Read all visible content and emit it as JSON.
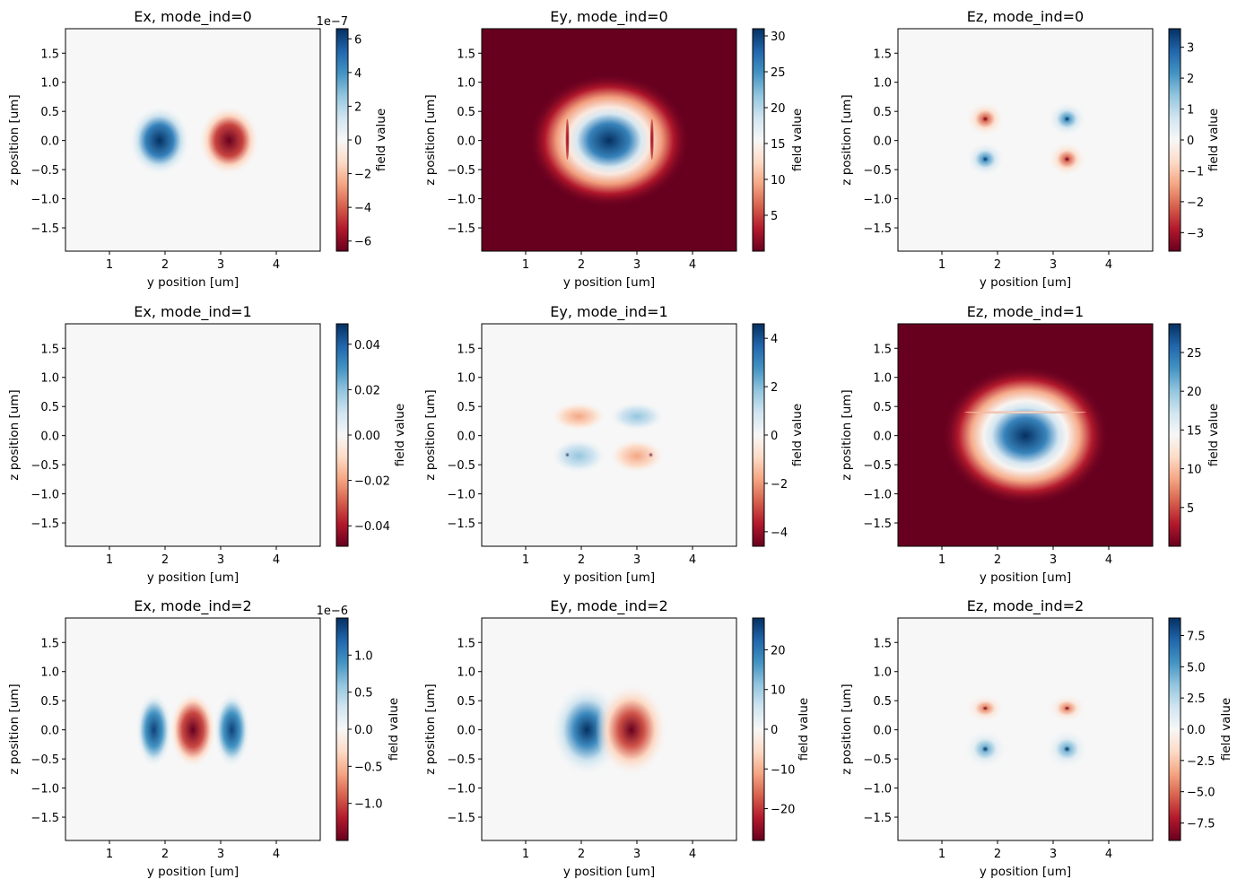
{
  "colormap": [
    "#67001f",
    "#b2182b",
    "#d6604d",
    "#f4a582",
    "#fddbc7",
    "#f7f7f7",
    "#d1e5f0",
    "#92c5de",
    "#4393c3",
    "#2166ac",
    "#053061"
  ],
  "chart_data": [
    {
      "type": "heatmap",
      "title": "Ex, mode_ind=0",
      "xlabel": "y position [um]",
      "ylabel": "z position [um]",
      "colorbar_label": "field value",
      "colorbar_offset": "1e−7",
      "xlim": [
        0.21,
        4.79
      ],
      "ylim": [
        -1.9,
        1.92
      ],
      "xticks": [
        "1",
        "2",
        "3",
        "4"
      ],
      "yticks": [
        "−1.5",
        "−1.0",
        "−0.5",
        "0.0",
        "0.5",
        "1.0",
        "1.5"
      ],
      "clim": [
        -6.6,
        6.6
      ],
      "cticks": [
        {
          "v": 6,
          "l": "6"
        },
        {
          "v": 4,
          "l": "4"
        },
        {
          "v": 2,
          "l": "2"
        },
        {
          "v": 0,
          "l": "0"
        },
        {
          "v": -2,
          "l": "−2"
        },
        {
          "v": -4,
          "l": "−4"
        },
        {
          "v": -6,
          "l": "−6"
        }
      ],
      "background": 0,
      "blobs": [
        {
          "y": 1.9,
          "z": 0.0,
          "ry": 0.55,
          "rz": 0.6,
          "profile": [
            [
              0,
              6.6
            ],
            [
              0.45,
              4.5
            ],
            [
              0.7,
              1.5
            ],
            [
              1,
              0
            ]
          ]
        },
        {
          "y": 3.15,
          "z": 0.0,
          "ry": 0.55,
          "rz": 0.6,
          "profile": [
            [
              0,
              -6.6
            ],
            [
              0.45,
              -4.5
            ],
            [
              0.7,
              -1.5
            ],
            [
              1,
              0
            ]
          ]
        }
      ]
    },
    {
      "type": "heatmap",
      "title": "Ey, mode_ind=0",
      "xlabel": "y position [um]",
      "ylabel": "z position [um]",
      "colorbar_label": "field value",
      "xlim": [
        0.21,
        4.79
      ],
      "ylim": [
        -1.9,
        1.92
      ],
      "xticks": [
        "1",
        "2",
        "3",
        "4"
      ],
      "yticks": [
        "−1.5",
        "−1.0",
        "−0.5",
        "0.0",
        "0.5",
        "1.0",
        "1.5"
      ],
      "clim": [
        0,
        31
      ],
      "cticks": [
        {
          "v": 30,
          "l": "30"
        },
        {
          "v": 25,
          "l": "25"
        },
        {
          "v": 20,
          "l": "20"
        },
        {
          "v": 15,
          "l": "15"
        },
        {
          "v": 10,
          "l": "10"
        },
        {
          "v": 5,
          "l": "5"
        }
      ],
      "background": 0,
      "blobs": [
        {
          "y": 2.5,
          "z": 0.0,
          "ry": 1.45,
          "rz": 1.15,
          "profile": [
            [
              0,
              31
            ],
            [
              0.25,
              26
            ],
            [
              0.4,
              18
            ],
            [
              0.5,
              14
            ],
            [
              0.65,
              9
            ],
            [
              0.8,
              3
            ],
            [
              1,
              0
            ]
          ]
        },
        {
          "y": 1.75,
          "z": 0.02,
          "ry": 0.03,
          "rz": 0.35,
          "profile": [
            [
              0,
              2
            ],
            [
              1,
              6
            ]
          ]
        },
        {
          "y": 3.27,
          "z": 0.02,
          "ry": 0.03,
          "rz": 0.35,
          "profile": [
            [
              0,
              2
            ],
            [
              1,
              6
            ]
          ]
        }
      ]
    },
    {
      "type": "heatmap",
      "title": "Ez, mode_ind=0",
      "xlabel": "y position [um]",
      "ylabel": "z position [um]",
      "colorbar_label": "field value",
      "xlim": [
        0.21,
        4.79
      ],
      "ylim": [
        -1.9,
        1.92
      ],
      "xticks": [
        "1",
        "2",
        "3",
        "4"
      ],
      "yticks": [
        "−1.5",
        "−1.0",
        "−0.5",
        "0.0",
        "0.5",
        "1.0",
        "1.5"
      ],
      "clim": [
        -3.6,
        3.6
      ],
      "cticks": [
        {
          "v": 3,
          "l": "3"
        },
        {
          "v": 2,
          "l": "2"
        },
        {
          "v": 1,
          "l": "1"
        },
        {
          "v": 0,
          "l": "0"
        },
        {
          "v": -1,
          "l": "−1"
        },
        {
          "v": -2,
          "l": "−2"
        },
        {
          "v": -3,
          "l": "−3"
        }
      ],
      "background": 0,
      "blobs": [
        {
          "y": 1.78,
          "z": 0.37,
          "ry": 0.35,
          "rz": 0.3,
          "profile": [
            [
              0,
              -3.6
            ],
            [
              0.15,
              -2
            ],
            [
              0.5,
              -0.6
            ],
            [
              1,
              0
            ]
          ]
        },
        {
          "y": 3.25,
          "z": 0.37,
          "ry": 0.35,
          "rz": 0.3,
          "profile": [
            [
              0,
              3.6
            ],
            [
              0.15,
              2
            ],
            [
              0.5,
              0.6
            ],
            [
              1,
              0
            ]
          ]
        },
        {
          "y": 1.78,
          "z": -0.32,
          "ry": 0.35,
          "rz": 0.3,
          "profile": [
            [
              0,
              3.6
            ],
            [
              0.15,
              2
            ],
            [
              0.5,
              0.6
            ],
            [
              1,
              0
            ]
          ]
        },
        {
          "y": 3.25,
          "z": -0.32,
          "ry": 0.35,
          "rz": 0.3,
          "profile": [
            [
              0,
              -3.6
            ],
            [
              0.15,
              -2
            ],
            [
              0.5,
              -0.6
            ],
            [
              1,
              0
            ]
          ]
        }
      ]
    },
    {
      "type": "heatmap",
      "title": "Ex, mode_ind=1",
      "xlabel": "y position [um]",
      "ylabel": "z position [um]",
      "colorbar_label": "field value",
      "xlim": [
        0.21,
        4.79
      ],
      "ylim": [
        -1.9,
        1.92
      ],
      "xticks": [
        "1",
        "2",
        "3",
        "4"
      ],
      "yticks": [
        "−1.5",
        "−1.0",
        "−0.5",
        "0.0",
        "0.5",
        "1.0",
        "1.5"
      ],
      "clim": [
        -0.049,
        0.049
      ],
      "cticks": [
        {
          "v": 0.04,
          "l": "0.04"
        },
        {
          "v": 0.02,
          "l": "0.02"
        },
        {
          "v": 0,
          "l": "0.00"
        },
        {
          "v": -0.02,
          "l": "−0.02"
        },
        {
          "v": -0.04,
          "l": "−0.04"
        }
      ],
      "background": 0,
      "blobs": []
    },
    {
      "type": "heatmap",
      "title": "Ey, mode_ind=1",
      "xlabel": "y position [um]",
      "ylabel": "z position [um]",
      "colorbar_label": "field value",
      "xlim": [
        0.21,
        4.79
      ],
      "ylim": [
        -1.9,
        1.92
      ],
      "xticks": [
        "1",
        "2",
        "3",
        "4"
      ],
      "yticks": [
        "−1.5",
        "−1.0",
        "−0.5",
        "0.0",
        "0.5",
        "1.0",
        "1.5"
      ],
      "clim": [
        -4.6,
        4.6
      ],
      "cticks": [
        {
          "v": 4,
          "l": "4"
        },
        {
          "v": 2,
          "l": "2"
        },
        {
          "v": 0,
          "l": "0"
        },
        {
          "v": -2,
          "l": "−2"
        },
        {
          "v": -4,
          "l": "−4"
        }
      ],
      "background": 0,
      "blobs": [
        {
          "y": 1.95,
          "z": 0.33,
          "ry": 0.5,
          "rz": 0.25,
          "profile": [
            [
              0,
              -1.8
            ],
            [
              0.6,
              -0.8
            ],
            [
              1,
              0
            ]
          ]
        },
        {
          "y": 3.0,
          "z": 0.33,
          "ry": 0.5,
          "rz": 0.25,
          "profile": [
            [
              0,
              1.8
            ],
            [
              0.6,
              0.8
            ],
            [
              1,
              0
            ]
          ]
        },
        {
          "y": 1.95,
          "z": -0.35,
          "ry": 0.5,
          "rz": 0.3,
          "profile": [
            [
              0,
              1.8
            ],
            [
              0.6,
              0.8
            ],
            [
              1,
              0
            ]
          ]
        },
        {
          "y": 3.0,
          "z": -0.35,
          "ry": 0.5,
          "rz": 0.3,
          "profile": [
            [
              0,
              -1.8
            ],
            [
              0.6,
              -0.8
            ],
            [
              1,
              0
            ]
          ]
        },
        {
          "y": 1.75,
          "z": -0.33,
          "ry": 0.06,
          "rz": 0.06,
          "profile": [
            [
              0,
              4.6
            ],
            [
              1,
              0
            ]
          ]
        },
        {
          "y": 3.25,
          "z": -0.33,
          "ry": 0.06,
          "rz": 0.06,
          "profile": [
            [
              0,
              -4.6
            ],
            [
              1,
              0
            ]
          ]
        }
      ]
    },
    {
      "type": "heatmap",
      "title": "Ez, mode_ind=1",
      "xlabel": "y position [um]",
      "ylabel": "z position [um]",
      "colorbar_label": "field value",
      "xlim": [
        0.21,
        4.79
      ],
      "ylim": [
        -1.9,
        1.92
      ],
      "xticks": [
        "1",
        "2",
        "3",
        "4"
      ],
      "yticks": [
        "−1.5",
        "−1.0",
        "−0.5",
        "0.0",
        "0.5",
        "1.0",
        "1.5"
      ],
      "clim": [
        0,
        28.7
      ],
      "cticks": [
        {
          "v": 25,
          "l": "25"
        },
        {
          "v": 20,
          "l": "20"
        },
        {
          "v": 15,
          "l": "15"
        },
        {
          "v": 10,
          "l": "10"
        },
        {
          "v": 5,
          "l": "5"
        }
      ],
      "background": 0,
      "blobs": [
        {
          "y": 2.5,
          "z": 0.0,
          "ry": 1.5,
          "rz": 1.2,
          "profile": [
            [
              0,
              28.7
            ],
            [
              0.25,
              24
            ],
            [
              0.4,
              17
            ],
            [
              0.5,
              14
            ],
            [
              0.65,
              9
            ],
            [
              0.8,
              3
            ],
            [
              1,
              0
            ]
          ]
        },
        {
          "y": 2.5,
          "z": 0.4,
          "ry": 1.1,
          "rz": 0.02,
          "profile": [
            [
              0,
              16
            ],
            [
              1,
              9
            ]
          ]
        }
      ]
    },
    {
      "type": "heatmap",
      "title": "Ex, mode_ind=2",
      "xlabel": "y position [um]",
      "ylabel": "z position [um]",
      "colorbar_label": "field value",
      "colorbar_offset": "1e−6",
      "xlim": [
        0.21,
        4.79
      ],
      "ylim": [
        -1.9,
        1.92
      ],
      "xticks": [
        "1",
        "2",
        "3",
        "4"
      ],
      "yticks": [
        "−1.5",
        "−1.0",
        "−0.5",
        "0.0",
        "0.5",
        "1.0",
        "1.5"
      ],
      "clim": [
        -1.5,
        1.5
      ],
      "cticks": [
        {
          "v": 1.0,
          "l": "1.0"
        },
        {
          "v": 0.5,
          "l": "0.5"
        },
        {
          "v": 0,
          "l": "0.0"
        },
        {
          "v": -0.5,
          "l": "−0.5"
        },
        {
          "v": -1.0,
          "l": "−1.0"
        }
      ],
      "background": 0,
      "blobs": [
        {
          "y": 1.8,
          "z": 0.0,
          "ry": 0.33,
          "rz": 0.65,
          "profile": [
            [
              0,
              1.4
            ],
            [
              0.45,
              0.9
            ],
            [
              0.75,
              0.25
            ],
            [
              1,
              0
            ]
          ]
        },
        {
          "y": 2.5,
          "z": 0.0,
          "ry": 0.42,
          "rz": 0.65,
          "profile": [
            [
              0,
              -1.5
            ],
            [
              0.45,
              -1.0
            ],
            [
              0.75,
              -0.3
            ],
            [
              1,
              0
            ]
          ]
        },
        {
          "y": 3.2,
          "z": 0.0,
          "ry": 0.33,
          "rz": 0.65,
          "profile": [
            [
              0,
              1.4
            ],
            [
              0.45,
              0.9
            ],
            [
              0.75,
              0.25
            ],
            [
              1,
              0
            ]
          ]
        }
      ]
    },
    {
      "type": "heatmap",
      "title": "Ey, mode_ind=2",
      "xlabel": "y position [um]",
      "ylabel": "z position [um]",
      "colorbar_label": "field value",
      "xlim": [
        0.21,
        4.79
      ],
      "ylim": [
        -1.9,
        1.92
      ],
      "xticks": [
        "1",
        "2",
        "3",
        "4"
      ],
      "yticks": [
        "−1.5",
        "−1.0",
        "−0.5",
        "0.0",
        "0.5",
        "1.0",
        "1.5"
      ],
      "clim": [
        -28,
        28
      ],
      "cticks": [
        {
          "v": 20,
          "l": "20"
        },
        {
          "v": 10,
          "l": "10"
        },
        {
          "v": 0,
          "l": "0"
        },
        {
          "v": -10,
          "l": "−10"
        },
        {
          "v": -20,
          "l": "−20"
        }
      ],
      "background": 0,
      "blobs": [
        {
          "y": 2.1,
          "z": 0.0,
          "ry": 0.65,
          "rz": 0.8,
          "profile": [
            [
              0,
              28
            ],
            [
              0.35,
              18
            ],
            [
              0.65,
              6
            ],
            [
              1,
              0
            ]
          ]
        },
        {
          "y": 2.9,
          "z": 0.0,
          "ry": 0.65,
          "rz": 0.8,
          "profile": [
            [
              0,
              -28
            ],
            [
              0.35,
              -18
            ],
            [
              0.65,
              -6
            ],
            [
              1,
              0
            ]
          ]
        }
      ]
    },
    {
      "type": "heatmap",
      "title": "Ez, mode_ind=2",
      "xlabel": "y position [um]",
      "ylabel": "z position [um]",
      "colorbar_label": "field value",
      "xlim": [
        0.21,
        4.79
      ],
      "ylim": [
        -1.9,
        1.92
      ],
      "xticks": [
        "1",
        "2",
        "3",
        "4"
      ],
      "yticks": [
        "−1.5",
        "−1.0",
        "−0.5",
        "0.0",
        "0.5",
        "1.0",
        "1.5"
      ],
      "clim": [
        -8.9,
        8.9
      ],
      "cticks": [
        {
          "v": 7.5,
          "l": "7.5"
        },
        {
          "v": 5,
          "l": "5.0"
        },
        {
          "v": 2.5,
          "l": "2.5"
        },
        {
          "v": 0,
          "l": "0.0"
        },
        {
          "v": -2.5,
          "l": "−2.5"
        },
        {
          "v": -5,
          "l": "−5.0"
        },
        {
          "v": -7.5,
          "l": "−7.5"
        }
      ],
      "background": 0,
      "blobs": [
        {
          "y": 1.78,
          "z": 0.37,
          "ry": 0.35,
          "rz": 0.25,
          "profile": [
            [
              0,
              -8.9
            ],
            [
              0.15,
              -4
            ],
            [
              0.5,
              -1
            ],
            [
              1,
              0
            ]
          ]
        },
        {
          "y": 3.25,
          "z": 0.37,
          "ry": 0.35,
          "rz": 0.25,
          "profile": [
            [
              0,
              -8.9
            ],
            [
              0.15,
              -4
            ],
            [
              0.5,
              -1
            ],
            [
              1,
              0
            ]
          ]
        },
        {
          "y": 1.78,
          "z": -0.33,
          "ry": 0.4,
          "rz": 0.35,
          "profile": [
            [
              0,
              8.9
            ],
            [
              0.15,
              4
            ],
            [
              0.5,
              1
            ],
            [
              1,
              0
            ]
          ]
        },
        {
          "y": 3.25,
          "z": -0.33,
          "ry": 0.4,
          "rz": 0.35,
          "profile": [
            [
              0,
              8.9
            ],
            [
              0.15,
              4
            ],
            [
              0.5,
              1
            ],
            [
              1,
              0
            ]
          ]
        }
      ]
    }
  ]
}
